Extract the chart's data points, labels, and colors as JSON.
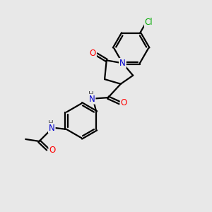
{
  "bg_color": "#e8e8e8",
  "bond_color": "#000000",
  "atom_colors": {
    "N": "#0000cd",
    "O": "#ff0000",
    "Cl": "#00aa00",
    "H": "#555555",
    "C": "#000000"
  },
  "title": "",
  "figsize": [
    3.0,
    3.0
  ],
  "dpi": 100,
  "xlim": [
    0,
    10
  ],
  "ylim": [
    0,
    10
  ]
}
